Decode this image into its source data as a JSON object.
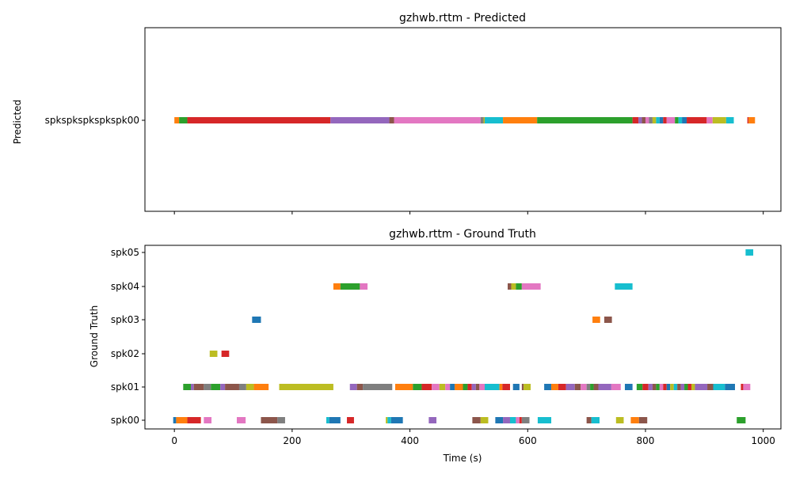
{
  "chart_data": [
    {
      "type": "timeline",
      "title": "gzhwb.rttm - Predicted",
      "xlabel": "",
      "ylabel": "Predicted",
      "xlim": [
        -50,
        1030
      ],
      "y_categories": [
        "spkspkspkspkspk00"
      ],
      "show_x_tick_labels": false,
      "grid": false,
      "segments": [
        {
          "row": 0,
          "start": 0,
          "end": 8,
          "color": "#ff7f0e"
        },
        {
          "row": 0,
          "start": 8,
          "end": 22,
          "color": "#2ca02c"
        },
        {
          "row": 0,
          "start": 22,
          "end": 265,
          "color": "#d62728"
        },
        {
          "row": 0,
          "start": 265,
          "end": 365,
          "color": "#9467bd"
        },
        {
          "row": 0,
          "start": 365,
          "end": 373,
          "color": "#8c564b"
        },
        {
          "row": 0,
          "start": 373,
          "end": 520,
          "color": "#e377c2"
        },
        {
          "row": 0,
          "start": 520,
          "end": 525,
          "color": "#7f7f7f"
        },
        {
          "row": 0,
          "start": 525,
          "end": 527,
          "color": "#bcbd22"
        },
        {
          "row": 0,
          "start": 527,
          "end": 558,
          "color": "#17becf"
        },
        {
          "row": 0,
          "start": 558,
          "end": 616,
          "color": "#ff7f0e"
        },
        {
          "row": 0,
          "start": 616,
          "end": 778,
          "color": "#2ca02c"
        },
        {
          "row": 0,
          "start": 778,
          "end": 788,
          "color": "#d62728"
        },
        {
          "row": 0,
          "start": 788,
          "end": 794,
          "color": "#9467bd"
        },
        {
          "row": 0,
          "start": 794,
          "end": 800,
          "color": "#8c564b"
        },
        {
          "row": 0,
          "start": 800,
          "end": 806,
          "color": "#e377c2"
        },
        {
          "row": 0,
          "start": 806,
          "end": 812,
          "color": "#7f7f7f"
        },
        {
          "row": 0,
          "start": 812,
          "end": 818,
          "color": "#bcbd22"
        },
        {
          "row": 0,
          "start": 818,
          "end": 824,
          "color": "#17becf"
        },
        {
          "row": 0,
          "start": 824,
          "end": 830,
          "color": "#1f77b4"
        },
        {
          "row": 0,
          "start": 830,
          "end": 836,
          "color": "#d62728"
        },
        {
          "row": 0,
          "start": 836,
          "end": 850,
          "color": "#e377c2"
        },
        {
          "row": 0,
          "start": 850,
          "end": 856,
          "color": "#2ca02c"
        },
        {
          "row": 0,
          "start": 856,
          "end": 862,
          "color": "#17becf"
        },
        {
          "row": 0,
          "start": 862,
          "end": 870,
          "color": "#1f77b4"
        },
        {
          "row": 0,
          "start": 870,
          "end": 904,
          "color": "#d62728"
        },
        {
          "row": 0,
          "start": 904,
          "end": 914,
          "color": "#e377c2"
        },
        {
          "row": 0,
          "start": 914,
          "end": 937,
          "color": "#bcbd22"
        },
        {
          "row": 0,
          "start": 937,
          "end": 950,
          "color": "#17becf"
        },
        {
          "row": 0,
          "start": 973,
          "end": 975,
          "color": "#d62728"
        },
        {
          "row": 0,
          "start": 975,
          "end": 986,
          "color": "#ff7f0e"
        }
      ]
    },
    {
      "type": "timeline",
      "title": "gzhwb.rttm - Ground Truth",
      "xlabel": "Time (s)",
      "ylabel": "Ground Truth",
      "xlim": [
        -50,
        1030
      ],
      "xticks": [
        "0",
        "200",
        "400",
        "600",
        "800",
        "1000"
      ],
      "xtick_values": [
        0,
        200,
        400,
        600,
        800,
        1000
      ],
      "y_categories": [
        "spk00",
        "spk01",
        "spk02",
        "spk03",
        "spk04",
        "spk05"
      ],
      "grid": false,
      "segments": [
        {
          "row": 0,
          "start": -2,
          "end": 3,
          "color": "#1f77b4"
        },
        {
          "row": 0,
          "start": 3,
          "end": 22,
          "color": "#ff7f0e"
        },
        {
          "row": 0,
          "start": 22,
          "end": 45,
          "color": "#d62728"
        },
        {
          "row": 0,
          "start": 50,
          "end": 63,
          "color": "#e377c2"
        },
        {
          "row": 0,
          "start": 106,
          "end": 121,
          "color": "#e377c2"
        },
        {
          "row": 0,
          "start": 147,
          "end": 175,
          "color": "#8c564b"
        },
        {
          "row": 0,
          "start": 175,
          "end": 188,
          "color": "#7f7f7f"
        },
        {
          "row": 0,
          "start": 258,
          "end": 263,
          "color": "#17becf"
        },
        {
          "row": 0,
          "start": 263,
          "end": 282,
          "color": "#1f77b4"
        },
        {
          "row": 0,
          "start": 293,
          "end": 305,
          "color": "#d62728"
        },
        {
          "row": 0,
          "start": 359,
          "end": 362,
          "color": "#bcbd22"
        },
        {
          "row": 0,
          "start": 362,
          "end": 368,
          "color": "#17becf"
        },
        {
          "row": 0,
          "start": 368,
          "end": 388,
          "color": "#1f77b4"
        },
        {
          "row": 0,
          "start": 432,
          "end": 445,
          "color": "#9467bd"
        },
        {
          "row": 0,
          "start": 506,
          "end": 520,
          "color": "#8c564b"
        },
        {
          "row": 0,
          "start": 520,
          "end": 533,
          "color": "#bcbd22"
        },
        {
          "row": 0,
          "start": 545,
          "end": 558,
          "color": "#1f77b4"
        },
        {
          "row": 0,
          "start": 558,
          "end": 570,
          "color": "#9467bd"
        },
        {
          "row": 0,
          "start": 570,
          "end": 580,
          "color": "#17becf"
        },
        {
          "row": 0,
          "start": 580,
          "end": 586,
          "color": "#e377c2"
        },
        {
          "row": 0,
          "start": 586,
          "end": 590,
          "color": "#d62728"
        },
        {
          "row": 0,
          "start": 590,
          "end": 603,
          "color": "#7f7f7f"
        },
        {
          "row": 0,
          "start": 617,
          "end": 640,
          "color": "#17becf"
        },
        {
          "row": 0,
          "start": 700,
          "end": 708,
          "color": "#8c564b"
        },
        {
          "row": 0,
          "start": 708,
          "end": 722,
          "color": "#17becf"
        },
        {
          "row": 0,
          "start": 750,
          "end": 763,
          "color": "#bcbd22"
        },
        {
          "row": 0,
          "start": 775,
          "end": 789,
          "color": "#ff7f0e"
        },
        {
          "row": 0,
          "start": 789,
          "end": 803,
          "color": "#8c564b"
        },
        {
          "row": 0,
          "start": 955,
          "end": 970,
          "color": "#2ca02c"
        },
        {
          "row": 1,
          "start": 15,
          "end": 28,
          "color": "#2ca02c"
        },
        {
          "row": 1,
          "start": 28,
          "end": 33,
          "color": "#9467bd"
        },
        {
          "row": 1,
          "start": 33,
          "end": 50,
          "color": "#8c564b"
        },
        {
          "row": 1,
          "start": 50,
          "end": 62,
          "color": "#7f7f7f"
        },
        {
          "row": 1,
          "start": 62,
          "end": 78,
          "color": "#2ca02c"
        },
        {
          "row": 1,
          "start": 78,
          "end": 86,
          "color": "#9467bd"
        },
        {
          "row": 1,
          "start": 86,
          "end": 110,
          "color": "#8c564b"
        },
        {
          "row": 1,
          "start": 110,
          "end": 122,
          "color": "#7f7f7f"
        },
        {
          "row": 1,
          "start": 122,
          "end": 135,
          "color": "#bcbd22"
        },
        {
          "row": 1,
          "start": 135,
          "end": 160,
          "color": "#ff7f0e"
        },
        {
          "row": 1,
          "start": 178,
          "end": 270,
          "color": "#bcbd22"
        },
        {
          "row": 1,
          "start": 298,
          "end": 310,
          "color": "#9467bd"
        },
        {
          "row": 1,
          "start": 310,
          "end": 320,
          "color": "#8c564b"
        },
        {
          "row": 1,
          "start": 320,
          "end": 370,
          "color": "#7f7f7f"
        },
        {
          "row": 1,
          "start": 375,
          "end": 405,
          "color": "#ff7f0e"
        },
        {
          "row": 1,
          "start": 405,
          "end": 420,
          "color": "#2ca02c"
        },
        {
          "row": 1,
          "start": 420,
          "end": 437,
          "color": "#d62728"
        },
        {
          "row": 1,
          "start": 437,
          "end": 450,
          "color": "#e377c2"
        },
        {
          "row": 1,
          "start": 450,
          "end": 460,
          "color": "#bcbd22"
        },
        {
          "row": 1,
          "start": 460,
          "end": 468,
          "color": "#e377c2"
        },
        {
          "row": 1,
          "start": 468,
          "end": 476,
          "color": "#1f77b4"
        },
        {
          "row": 1,
          "start": 476,
          "end": 490,
          "color": "#ff7f0e"
        },
        {
          "row": 1,
          "start": 490,
          "end": 498,
          "color": "#2ca02c"
        },
        {
          "row": 1,
          "start": 498,
          "end": 505,
          "color": "#d62728"
        },
        {
          "row": 1,
          "start": 505,
          "end": 512,
          "color": "#9467bd"
        },
        {
          "row": 1,
          "start": 512,
          "end": 518,
          "color": "#8c564b"
        },
        {
          "row": 1,
          "start": 518,
          "end": 527,
          "color": "#e377c2"
        },
        {
          "row": 1,
          "start": 527,
          "end": 552,
          "color": "#17becf"
        },
        {
          "row": 1,
          "start": 552,
          "end": 557,
          "color": "#ff7f0e"
        },
        {
          "row": 1,
          "start": 557,
          "end": 570,
          "color": "#d62728"
        },
        {
          "row": 1,
          "start": 575,
          "end": 586,
          "color": "#1f77b4"
        },
        {
          "row": 1,
          "start": 590,
          "end": 593,
          "color": "#8c564b"
        },
        {
          "row": 1,
          "start": 593,
          "end": 605,
          "color": "#bcbd22"
        },
        {
          "row": 1,
          "start": 628,
          "end": 640,
          "color": "#1f77b4"
        },
        {
          "row": 1,
          "start": 640,
          "end": 652,
          "color": "#ff7f0e"
        },
        {
          "row": 1,
          "start": 652,
          "end": 665,
          "color": "#d62728"
        },
        {
          "row": 1,
          "start": 665,
          "end": 680,
          "color": "#9467bd"
        },
        {
          "row": 1,
          "start": 680,
          "end": 690,
          "color": "#8c564b"
        },
        {
          "row": 1,
          "start": 690,
          "end": 700,
          "color": "#e377c2"
        },
        {
          "row": 1,
          "start": 700,
          "end": 706,
          "color": "#7f7f7f"
        },
        {
          "row": 1,
          "start": 706,
          "end": 712,
          "color": "#2ca02c"
        },
        {
          "row": 1,
          "start": 712,
          "end": 720,
          "color": "#8c564b"
        },
        {
          "row": 1,
          "start": 720,
          "end": 742,
          "color": "#9467bd"
        },
        {
          "row": 1,
          "start": 742,
          "end": 758,
          "color": "#e377c2"
        },
        {
          "row": 1,
          "start": 765,
          "end": 778,
          "color": "#1f77b4"
        },
        {
          "row": 1,
          "start": 785,
          "end": 795,
          "color": "#2ca02c"
        },
        {
          "row": 1,
          "start": 795,
          "end": 805,
          "color": "#d62728"
        },
        {
          "row": 1,
          "start": 805,
          "end": 812,
          "color": "#9467bd"
        },
        {
          "row": 1,
          "start": 812,
          "end": 818,
          "color": "#8c564b"
        },
        {
          "row": 1,
          "start": 818,
          "end": 824,
          "color": "#2ca02c"
        },
        {
          "row": 1,
          "start": 824,
          "end": 830,
          "color": "#e377c2"
        },
        {
          "row": 1,
          "start": 830,
          "end": 836,
          "color": "#d62728"
        },
        {
          "row": 1,
          "start": 836,
          "end": 842,
          "color": "#1f77b4"
        },
        {
          "row": 1,
          "start": 842,
          "end": 848,
          "color": "#bcbd22"
        },
        {
          "row": 1,
          "start": 848,
          "end": 854,
          "color": "#17becf"
        },
        {
          "row": 1,
          "start": 854,
          "end": 860,
          "color": "#8c564b"
        },
        {
          "row": 1,
          "start": 860,
          "end": 866,
          "color": "#9467bd"
        },
        {
          "row": 1,
          "start": 866,
          "end": 872,
          "color": "#2ca02c"
        },
        {
          "row": 1,
          "start": 872,
          "end": 878,
          "color": "#d62728"
        },
        {
          "row": 1,
          "start": 878,
          "end": 884,
          "color": "#bcbd22"
        },
        {
          "row": 1,
          "start": 884,
          "end": 905,
          "color": "#9467bd"
        },
        {
          "row": 1,
          "start": 905,
          "end": 915,
          "color": "#8c564b"
        },
        {
          "row": 1,
          "start": 915,
          "end": 935,
          "color": "#17becf"
        },
        {
          "row": 1,
          "start": 935,
          "end": 952,
          "color": "#1f77b4"
        },
        {
          "row": 1,
          "start": 962,
          "end": 966,
          "color": "#d62728"
        },
        {
          "row": 1,
          "start": 966,
          "end": 978,
          "color": "#e377c2"
        },
        {
          "row": 2,
          "start": 60,
          "end": 73,
          "color": "#bcbd22"
        },
        {
          "row": 2,
          "start": 80,
          "end": 93,
          "color": "#d62728"
        },
        {
          "row": 3,
          "start": 132,
          "end": 147,
          "color": "#1f77b4"
        },
        {
          "row": 3,
          "start": 710,
          "end": 723,
          "color": "#ff7f0e"
        },
        {
          "row": 3,
          "start": 730,
          "end": 743,
          "color": "#8c564b"
        },
        {
          "row": 4,
          "start": 270,
          "end": 282,
          "color": "#ff7f0e"
        },
        {
          "row": 4,
          "start": 282,
          "end": 315,
          "color": "#2ca02c"
        },
        {
          "row": 4,
          "start": 315,
          "end": 328,
          "color": "#e377c2"
        },
        {
          "row": 4,
          "start": 566,
          "end": 572,
          "color": "#8c564b"
        },
        {
          "row": 4,
          "start": 572,
          "end": 580,
          "color": "#bcbd22"
        },
        {
          "row": 4,
          "start": 580,
          "end": 590,
          "color": "#2ca02c"
        },
        {
          "row": 4,
          "start": 590,
          "end": 622,
          "color": "#e377c2"
        },
        {
          "row": 4,
          "start": 748,
          "end": 778,
          "color": "#17becf"
        },
        {
          "row": 5,
          "start": 970,
          "end": 983,
          "color": "#17becf"
        }
      ]
    }
  ]
}
